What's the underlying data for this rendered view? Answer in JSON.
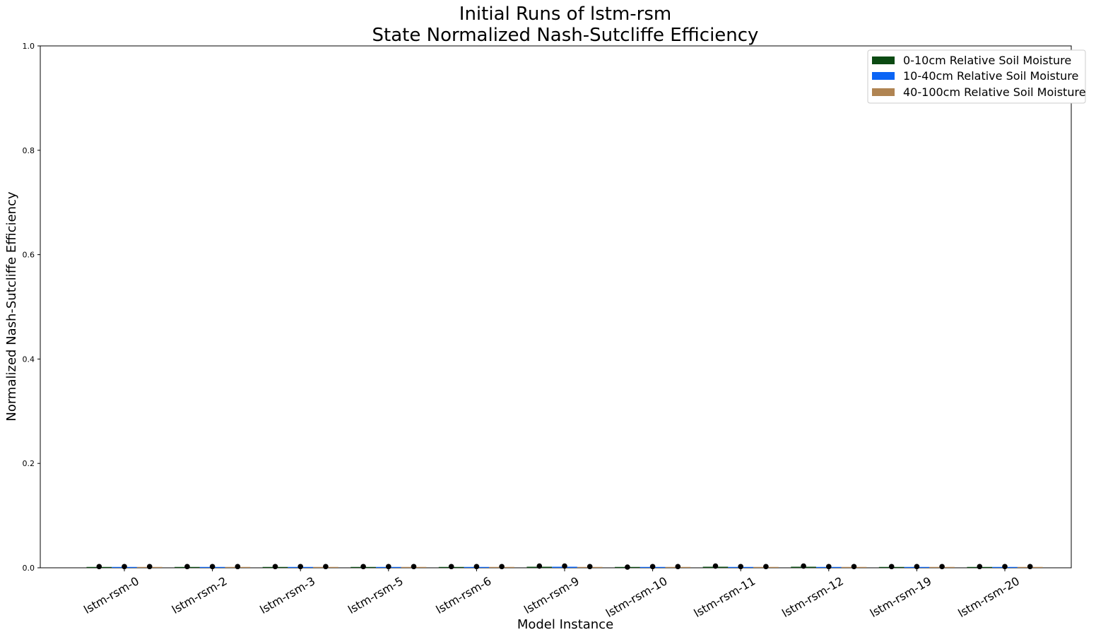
{
  "chart_data": {
    "type": "bar",
    "title": [
      "Initial Runs of lstm-rsm",
      "State Normalized Nash-Sutcliffe Efficiency"
    ],
    "xlabel": "Model Instance",
    "ylabel": "Normalized Nash-Sutcliffe Efficiency",
    "ylim": [
      0,
      1.0
    ],
    "yticks": [
      "0.0",
      "0.2",
      "0.4",
      "0.6",
      "0.8",
      "1.0"
    ],
    "categories": [
      "lstm-rsm-0",
      "lstm-rsm-2",
      "lstm-rsm-3",
      "lstm-rsm-5",
      "lstm-rsm-6",
      "lstm-rsm-9",
      "lstm-rsm-10",
      "lstm-rsm-11",
      "lstm-rsm-12",
      "lstm-rsm-19",
      "lstm-rsm-20"
    ],
    "series": [
      {
        "name": "0-10cm Relative Soil Moisture",
        "color": "#0b4a12",
        "values": [
          0.001,
          0.001,
          0.001,
          0.001,
          0.001,
          0.002,
          0.0,
          0.002,
          0.002,
          0.001,
          0.001
        ]
      },
      {
        "name": "10-40cm Relative Soil Moisture",
        "color": "#0a64f5",
        "values": [
          0.001,
          0.001,
          0.001,
          0.001,
          0.001,
          0.002,
          0.001,
          0.001,
          0.001,
          0.001,
          0.001
        ]
      },
      {
        "name": "40-100cm Relative Soil Moisture",
        "color": "#b08452",
        "values": [
          0.001,
          0.001,
          0.001,
          0.001,
          0.001,
          0.001,
          0.001,
          0.001,
          0.001,
          0.001,
          0.001
        ]
      }
    ],
    "error_markers": true,
    "legend_position": "top-right",
    "grid": false
  }
}
